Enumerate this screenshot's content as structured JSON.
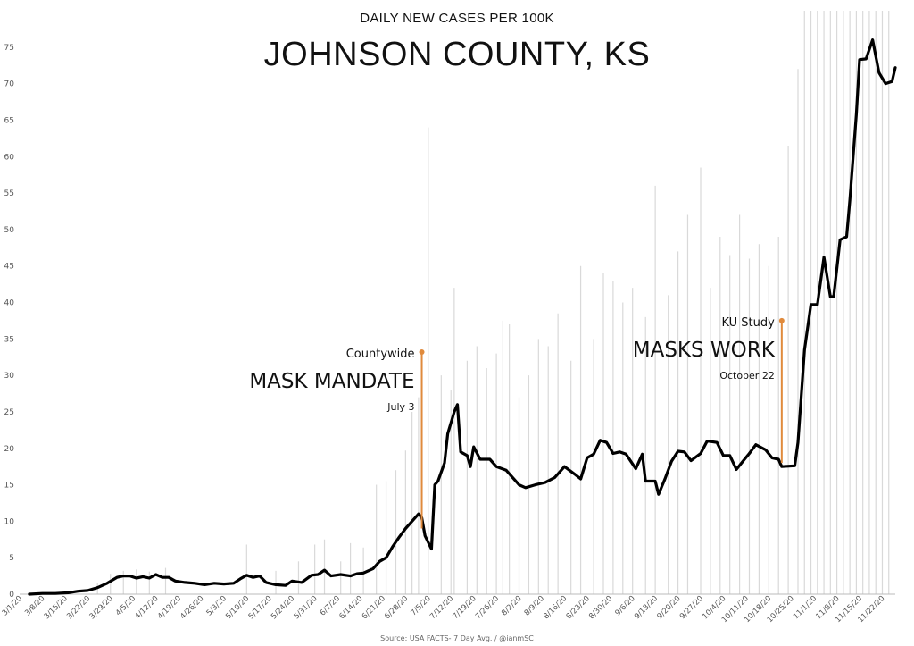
{
  "chart_data": {
    "type": "line",
    "subtitle": "DAILY NEW CASES PER 100K",
    "title": "JOHNSON COUNTY, KS",
    "source": "Source: USA FACTS- 7 Day Avg. / @ianmSC",
    "ylim": [
      0,
      80
    ],
    "yticks": [
      0,
      5,
      10,
      15,
      20,
      25,
      30,
      35,
      40,
      45,
      50,
      55,
      60,
      65,
      70,
      75
    ],
    "xlim": [
      "3/1/20",
      "11/26/20"
    ],
    "xticks": [
      "3/1/20",
      "3/8/20",
      "3/15/20",
      "3/22/20",
      "3/29/20",
      "4/5/20",
      "4/12/20",
      "4/19/20",
      "4/26/20",
      "5/3/20",
      "5/10/20",
      "5/17/20",
      "5/24/20",
      "5/31/20",
      "6/7/20",
      "6/14/20",
      "6/21/20",
      "6/28/20",
      "7/5/20",
      "7/12/20",
      "7/19/20",
      "7/26/20",
      "8/2/20",
      "8/9/20",
      "8/16/20",
      "8/23/20",
      "8/30/20",
      "9/6/20",
      "9/13/20",
      "9/20/20",
      "9/27/20",
      "10/4/20",
      "10/11/20",
      "10/18/20",
      "10/25/20",
      "11/1/20",
      "11/8/20",
      "11/15/20",
      "11/22/20"
    ],
    "series": [
      {
        "type": "line",
        "color": "#000000",
        "points": [
          [
            "3/4/20",
            0
          ],
          [
            "3/8/20",
            0.1
          ],
          [
            "3/12/20",
            0.1
          ],
          [
            "3/16/20",
            0.2
          ],
          [
            "3/19/20",
            0.4
          ],
          [
            "3/22/20",
            0.5
          ],
          [
            "3/25/20",
            0.9
          ],
          [
            "3/28/20",
            1.5
          ],
          [
            "3/31/20",
            2.3
          ],
          [
            "4/2/20",
            2.5
          ],
          [
            "4/4/20",
            2.5
          ],
          [
            "4/6/20",
            2.2
          ],
          [
            "4/8/20",
            2.4
          ],
          [
            "4/10/20",
            2.2
          ],
          [
            "4/12/20",
            2.7
          ],
          [
            "4/14/20",
            2.3
          ],
          [
            "4/16/20",
            2.3
          ],
          [
            "4/18/20",
            1.8
          ],
          [
            "4/21/20",
            1.6
          ],
          [
            "4/24/20",
            1.5
          ],
          [
            "4/27/20",
            1.3
          ],
          [
            "4/30/20",
            1.5
          ],
          [
            "5/3/20",
            1.4
          ],
          [
            "5/6/20",
            1.5
          ],
          [
            "5/8/20",
            2.1
          ],
          [
            "5/10/20",
            2.6
          ],
          [
            "5/12/20",
            2.3
          ],
          [
            "5/14/20",
            2.5
          ],
          [
            "5/16/20",
            1.6
          ],
          [
            "5/19/20",
            1.3
          ],
          [
            "5/22/20",
            1.2
          ],
          [
            "5/24/20",
            1.8
          ],
          [
            "5/27/20",
            1.6
          ],
          [
            "5/30/20",
            2.6
          ],
          [
            "6/1/20",
            2.7
          ],
          [
            "6/3/20",
            3.3
          ],
          [
            "6/5/20",
            2.5
          ],
          [
            "6/8/20",
            2.7
          ],
          [
            "6/11/20",
            2.5
          ],
          [
            "6/13/20",
            2.8
          ],
          [
            "6/15/20",
            2.9
          ],
          [
            "6/18/20",
            3.5
          ],
          [
            "6/20/20",
            4.5
          ],
          [
            "6/22/20",
            5
          ],
          [
            "6/24/20",
            6.5
          ],
          [
            "6/26/20",
            7.8
          ],
          [
            "6/28/20",
            9
          ],
          [
            "6/30/20",
            10
          ],
          [
            "7/2/20",
            11
          ],
          [
            "7/3/20",
            10.5
          ],
          [
            "7/4/20",
            8
          ],
          [
            "7/6/20",
            6.2
          ],
          [
            "7/7/20",
            15
          ],
          [
            "7/8/20",
            15.5
          ],
          [
            "7/10/20",
            18
          ],
          [
            "7/11/20",
            22
          ],
          [
            "7/13/20",
            25
          ],
          [
            "7/14/20",
            26
          ],
          [
            "7/15/20",
            19.5
          ],
          [
            "7/17/20",
            19
          ],
          [
            "7/18/20",
            17.5
          ],
          [
            "7/19/20",
            20.2
          ],
          [
            "7/21/20",
            18.5
          ],
          [
            "7/24/20",
            18.5
          ],
          [
            "7/26/20",
            17.5
          ],
          [
            "7/29/20",
            17
          ],
          [
            "7/31/20",
            16
          ],
          [
            "8/2/20",
            15
          ],
          [
            "8/4/20",
            14.6
          ],
          [
            "8/7/20",
            15
          ],
          [
            "8/10/20",
            15.3
          ],
          [
            "8/13/20",
            16
          ],
          [
            "8/16/20",
            17.5
          ],
          [
            "8/19/20",
            16.5
          ],
          [
            "8/21/20",
            15.8
          ],
          [
            "8/23/20",
            18.7
          ],
          [
            "8/25/20",
            19.2
          ],
          [
            "8/27/20",
            21.1
          ],
          [
            "8/29/20",
            20.8
          ],
          [
            "8/31/20",
            19.3
          ],
          [
            "9/2/20",
            19.5
          ],
          [
            "9/4/20",
            19.2
          ],
          [
            "9/7/20",
            17.2
          ],
          [
            "9/9/20",
            19.2
          ],
          [
            "9/10/20",
            15.5
          ],
          [
            "9/13/20",
            15.5
          ],
          [
            "9/14/20",
            13.7
          ],
          [
            "9/16/20",
            15.8
          ],
          [
            "9/18/20",
            18.2
          ],
          [
            "9/20/20",
            19.6
          ],
          [
            "9/22/20",
            19.5
          ],
          [
            "9/24/20",
            18.3
          ],
          [
            "9/27/20",
            19.3
          ],
          [
            "9/29/20",
            21
          ],
          [
            "10/2/20",
            20.8
          ],
          [
            "10/4/20",
            19
          ],
          [
            "10/6/20",
            19
          ],
          [
            "10/8/20",
            17.1
          ],
          [
            "10/10/20",
            18.2
          ],
          [
            "10/12/20",
            19.3
          ],
          [
            "10/14/20",
            20.5
          ],
          [
            "10/17/20",
            19.8
          ],
          [
            "10/19/20",
            18.7
          ],
          [
            "10/21/20",
            18.5
          ],
          [
            "10/22/20",
            17.5
          ],
          [
            "10/26/20",
            17.6
          ],
          [
            "10/27/20",
            20.8
          ],
          [
            "10/29/20",
            33.5
          ],
          [
            "10/31/20",
            39.7
          ],
          [
            "11/2/20",
            39.7
          ],
          [
            "11/4/20",
            46.2
          ],
          [
            "11/6/20",
            40.8
          ],
          [
            "11/7/20",
            40.8
          ],
          [
            "11/9/20",
            48.6
          ],
          [
            "11/11/20",
            49
          ],
          [
            "11/12/20",
            54
          ],
          [
            "11/14/20",
            65.8
          ],
          [
            "11/15/20",
            73.3
          ],
          [
            "11/17/20",
            73.4
          ],
          [
            "11/19/20",
            76
          ],
          [
            "11/21/20",
            71.5
          ],
          [
            "11/23/20",
            70
          ],
          [
            "11/25/20",
            70.3
          ],
          [
            "11/26/20",
            72.2
          ]
        ]
      },
      {
        "type": "bars",
        "color": "#d9d9d9",
        "points": [
          [
            "3/25/20",
            1.5
          ],
          [
            "3/29/20",
            2.8
          ],
          [
            "4/2/20",
            3.2
          ],
          [
            "4/6/20",
            3.4
          ],
          [
            "4/10/20",
            3.1
          ],
          [
            "4/15/20",
            3.6
          ],
          [
            "5/10/20",
            6.8
          ],
          [
            "5/19/20",
            3.2
          ],
          [
            "5/26/20",
            4.5
          ],
          [
            "5/31/20",
            6.8
          ],
          [
            "6/3/20",
            7.5
          ],
          [
            "6/8/20",
            4.5
          ],
          [
            "6/11/20",
            7
          ],
          [
            "6/15/20",
            6.4
          ],
          [
            "6/19/20",
            15
          ],
          [
            "6/22/20",
            15.5
          ],
          [
            "6/25/20",
            17
          ],
          [
            "6/28/20",
            19.7
          ],
          [
            "6/30/20",
            25
          ],
          [
            "7/2/20",
            27
          ],
          [
            "7/5/20",
            64
          ],
          [
            "7/9/20",
            30
          ],
          [
            "7/12/20",
            28
          ],
          [
            "7/13/20",
            42
          ],
          [
            "7/17/20",
            32
          ],
          [
            "7/20/20",
            34
          ],
          [
            "7/23/20",
            31
          ],
          [
            "7/26/20",
            33
          ],
          [
            "7/28/20",
            37.5
          ],
          [
            "7/30/20",
            37
          ],
          [
            "8/2/20",
            27
          ],
          [
            "8/5/20",
            30
          ],
          [
            "8/8/20",
            35
          ],
          [
            "8/11/20",
            34
          ],
          [
            "8/14/20",
            38.5
          ],
          [
            "8/18/20",
            32
          ],
          [
            "8/21/20",
            45
          ],
          [
            "8/25/20",
            35
          ],
          [
            "8/28/20",
            44
          ],
          [
            "8/31/20",
            43
          ],
          [
            "9/3/20",
            40
          ],
          [
            "9/6/20",
            42
          ],
          [
            "9/10/20",
            38
          ],
          [
            "9/13/20",
            56
          ],
          [
            "9/17/20",
            41
          ],
          [
            "9/20/20",
            47
          ],
          [
            "9/23/20",
            52
          ],
          [
            "9/27/20",
            58.5
          ],
          [
            "9/30/20",
            42
          ],
          [
            "10/3/20",
            49
          ],
          [
            "10/6/20",
            46.5
          ],
          [
            "10/9/20",
            52
          ],
          [
            "10/12/20",
            46
          ],
          [
            "10/15/20",
            48
          ],
          [
            "10/18/20",
            45
          ],
          [
            "10/21/20",
            49
          ],
          [
            "10/24/20",
            61.5
          ],
          [
            "10/27/20",
            72
          ],
          [
            "10/29/20",
            80
          ],
          [
            "10/31/20",
            80
          ],
          [
            "11/2/20",
            80
          ],
          [
            "11/4/20",
            80
          ],
          [
            "11/6/20",
            80
          ],
          [
            "11/8/20",
            80
          ],
          [
            "11/10/20",
            80
          ],
          [
            "11/12/20",
            80
          ],
          [
            "11/14/20",
            80
          ],
          [
            "11/16/20",
            80
          ],
          [
            "11/18/20",
            80
          ],
          [
            "11/20/20",
            80
          ],
          [
            "11/22/20",
            80
          ],
          [
            "11/24/20",
            80
          ]
        ]
      }
    ],
    "annotations": [
      {
        "small": "Countywide",
        "big": "MASK MANDATE",
        "date": "July 3",
        "x": "7/3/20",
        "y_top": 33.2,
        "y_bottom": 9
      },
      {
        "small": "KU Study",
        "big": "MASKS WORK",
        "date": "October 22",
        "x": "10/22/20",
        "y_top": 37.5,
        "y_bottom": 18
      }
    ],
    "annotation_color": "#E08A3C",
    "grid": false,
    "legend": "none"
  }
}
